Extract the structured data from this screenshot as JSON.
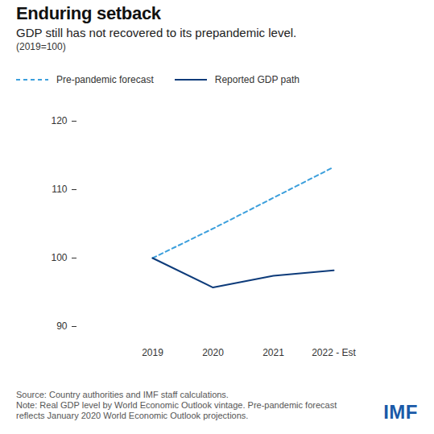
{
  "chart_data": {
    "type": "line",
    "title": "Enduring setback",
    "subtitle": "GDP still has not recovered to its prepandemic level.",
    "subtitle_note": "(2019=100)",
    "categories": [
      "2019",
      "2020",
      "2021",
      "2022 - Est"
    ],
    "series": [
      {
        "name": "Pre-pandemic forecast",
        "color": "#3b9fdc",
        "line_style": "dashed",
        "values": [
          100,
          104.3,
          108.8,
          113.3
        ]
      },
      {
        "name": "Reported GDP path",
        "color": "#0d3b7a",
        "line_style": "solid",
        "values": [
          100,
          95.7,
          97.4,
          98.2
        ]
      }
    ],
    "ylim": [
      90,
      120
    ],
    "yticks": [
      90,
      100,
      110,
      120
    ],
    "grid": false,
    "legend": "top-left",
    "source": "Source: Country authorities and IMF staff calculations.",
    "note": "Note: Real GDP level by World Economic Outlook vintage. Pre-pandemic forecast reflects January 2020 World Economic Outlook projections.",
    "brand": "IMF"
  }
}
